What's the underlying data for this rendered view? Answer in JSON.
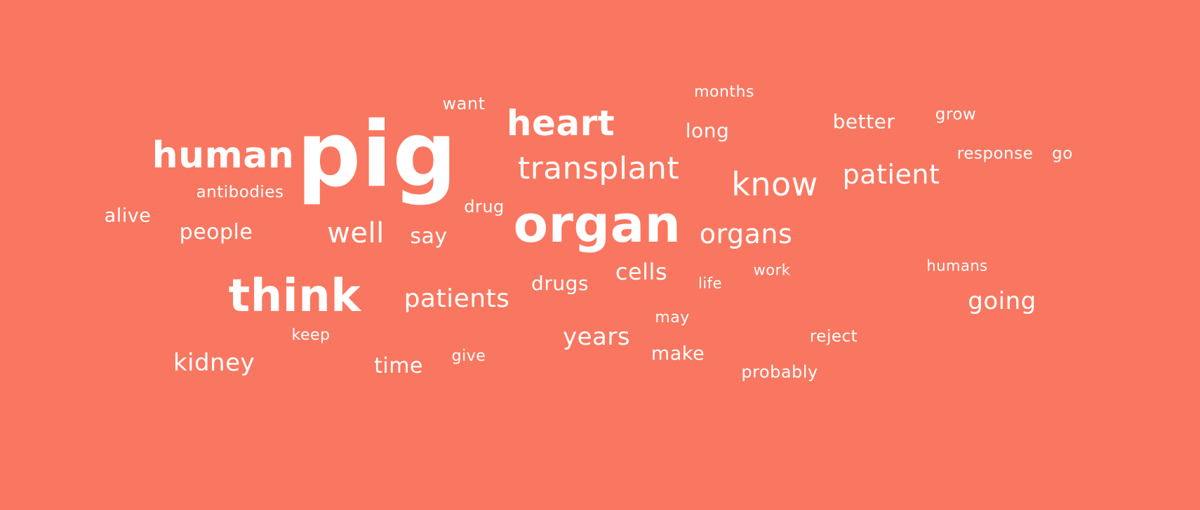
{
  "background_color": "#f97760",
  "text_color": "#ffffff",
  "words": [
    {
      "key": "pig",
      "text": "pig"
    },
    {
      "key": "organ",
      "text": "organ"
    },
    {
      "key": "think",
      "text": "think"
    },
    {
      "key": "human",
      "text": "human"
    },
    {
      "key": "heart",
      "text": "heart"
    },
    {
      "key": "transplant",
      "text": "transplant"
    },
    {
      "key": "know",
      "text": "know"
    },
    {
      "key": "patient",
      "text": "patient"
    },
    {
      "key": "organs",
      "text": "organs"
    },
    {
      "key": "well",
      "text": "well"
    },
    {
      "key": "patients",
      "text": "patients"
    },
    {
      "key": "going",
      "text": "going"
    },
    {
      "key": "kidney",
      "text": "kidney"
    },
    {
      "key": "years",
      "text": "years"
    },
    {
      "key": "people",
      "text": "people"
    },
    {
      "key": "cells",
      "text": "cells"
    },
    {
      "key": "time",
      "text": "time"
    },
    {
      "key": "say",
      "text": "say"
    },
    {
      "key": "drugs",
      "text": "drugs"
    },
    {
      "key": "long",
      "text": "long"
    },
    {
      "key": "better",
      "text": "better"
    },
    {
      "key": "make",
      "text": "make"
    },
    {
      "key": "alive",
      "text": "alive"
    },
    {
      "key": "antibodies",
      "text": "antibodies"
    },
    {
      "key": "want",
      "text": "want"
    },
    {
      "key": "drug",
      "text": "drug"
    },
    {
      "key": "months",
      "text": "months"
    },
    {
      "key": "grow",
      "text": "grow"
    },
    {
      "key": "response",
      "text": "response"
    },
    {
      "key": "go",
      "text": "go"
    },
    {
      "key": "work",
      "text": "work"
    },
    {
      "key": "life",
      "text": "life"
    },
    {
      "key": "humans",
      "text": "humans"
    },
    {
      "key": "may",
      "text": "may"
    },
    {
      "key": "keep",
      "text": "keep"
    },
    {
      "key": "give",
      "text": "give"
    },
    {
      "key": "reject",
      "text": "reject"
    },
    {
      "key": "probably",
      "text": "probably"
    }
  ]
}
